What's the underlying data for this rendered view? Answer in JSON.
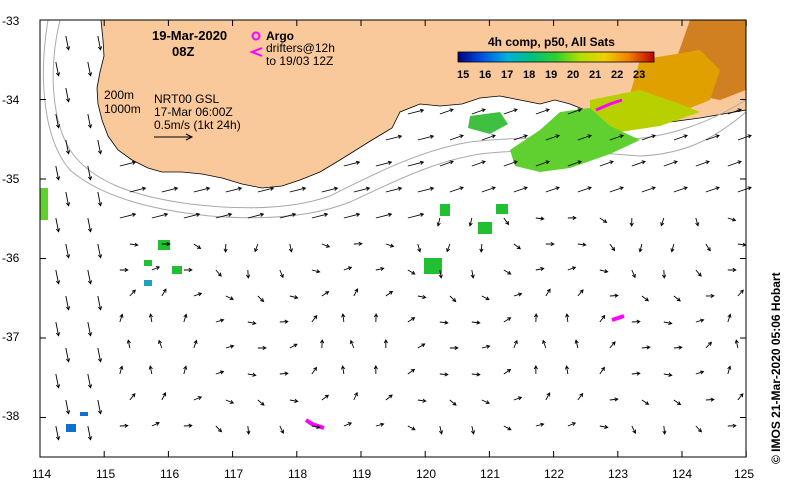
{
  "map": {
    "date": "19-Mar-2020",
    "hour": "08Z",
    "argo_label": "Argo",
    "drifters_line1": "drifters@12h",
    "drifters_line2": "to 19/03 12Z",
    "isobath_200": "200m",
    "isobath_1000": "1000m",
    "product": "NRT00 GSL",
    "product_time": "17-Mar 06:00Z",
    "scale_label": "0.5m/s (1kt 24h)",
    "colorbar_title": "4h comp, p50, All Sats",
    "colorbar_ticks": [
      "15",
      "16",
      "17",
      "18",
      "19",
      "20",
      "21",
      "22",
      "23"
    ],
    "credit": "© IMOS 21-Mar-2020 05:06 Hobart",
    "x_ticks": [
      "114",
      "115",
      "116",
      "117",
      "118",
      "119",
      "120",
      "121",
      "122",
      "123",
      "124",
      "125"
    ],
    "y_ticks": [
      "-33",
      "-34",
      "-35",
      "-36",
      "-37",
      "-38"
    ],
    "colors": {
      "land": "#f9c89b",
      "argo": "#ff00ff",
      "sst_cool": "#00a0ff",
      "sst_green": "#20c020",
      "sst_warm": "#e08000"
    }
  }
}
